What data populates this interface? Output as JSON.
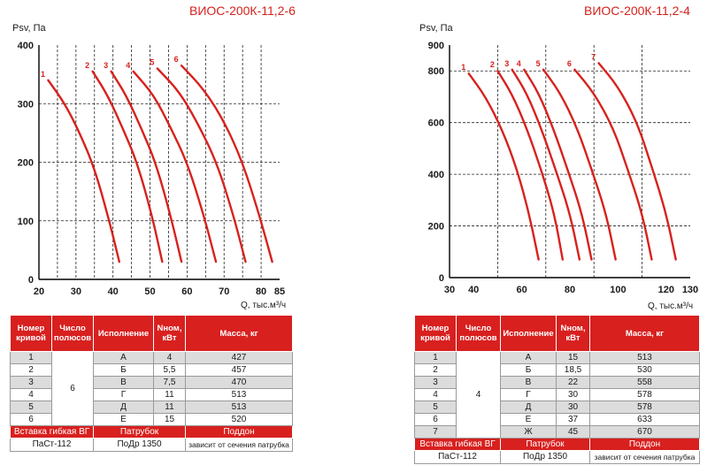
{
  "left": {
    "title": "ВИОС-200К-11,2-6",
    "chart_data": {
      "type": "line",
      "ylabel": "Psv, Па",
      "xlabel": "Q, тыс.м³/ч",
      "xlim": [
        20,
        85
      ],
      "ylim": [
        0,
        400
      ],
      "xticks": [
        20,
        30,
        40,
        50,
        60,
        70,
        80,
        85
      ],
      "yticks": [
        0,
        100,
        200,
        300,
        400
      ],
      "grid": true,
      "series": [
        {
          "name": "1",
          "x": [
            22.5,
            27,
            31,
            35,
            39,
            41.7
          ],
          "y": [
            340,
            300,
            250,
            190,
            100,
            30
          ]
        },
        {
          "name": "2",
          "x": [
            34.5,
            38.5,
            42.5,
            46.5,
            50.5,
            53.3
          ],
          "y": [
            355,
            315,
            260,
            200,
            110,
            30
          ]
        },
        {
          "name": "3",
          "x": [
            39.5,
            43.5,
            47.5,
            51.5,
            55.5,
            58.5
          ],
          "y": [
            355,
            315,
            260,
            200,
            110,
            30
          ]
        },
        {
          "name": "4",
          "x": [
            45.5,
            51,
            55.5,
            60,
            64.5,
            67.8
          ],
          "y": [
            355,
            315,
            260,
            200,
            110,
            30
          ]
        },
        {
          "name": "5",
          "x": [
            52,
            58,
            63,
            68,
            72.5,
            75.8
          ],
          "y": [
            360,
            320,
            265,
            200,
            110,
            30
          ]
        },
        {
          "name": "6",
          "x": [
            58.5,
            64.5,
            70,
            75,
            79.5,
            83
          ],
          "y": [
            365,
            325,
            270,
            200,
            110,
            30
          ]
        }
      ]
    },
    "table": {
      "headers": [
        "Номер кривой",
        "Число полюсов",
        "Исполнение",
        "Nном, кВт",
        "Масса, кг"
      ],
      "poles": "6",
      "rows": [
        {
          "n": "1",
          "isp": "А",
          "nnom": "4",
          "mass": "427"
        },
        {
          "n": "2",
          "isp": "Б",
          "nnom": "5,5",
          "mass": "457"
        },
        {
          "n": "3",
          "isp": "В",
          "nnom": "7,5",
          "mass": "470"
        },
        {
          "n": "4",
          "isp": "Г",
          "nnom": "11",
          "mass": "513"
        },
        {
          "n": "5",
          "isp": "Д",
          "nnom": "11",
          "mass": "513"
        },
        {
          "n": "6",
          "isp": "Е",
          "nnom": "15",
          "mass": "520"
        }
      ],
      "acc_headers": [
        "Вставка гибкая ВГ",
        "Патрубок",
        "Поддон"
      ],
      "acc_values": [
        "ПаСт-112",
        "ПоДр 1350",
        "зависит от сечения патрубка"
      ]
    }
  },
  "right": {
    "title": "ВИОС-200К-11,2-4",
    "chart_data": {
      "type": "line",
      "ylabel": "Psv, Па",
      "xlabel": "Q, тыс.м³/ч",
      "xlim": [
        30,
        130
      ],
      "ylim": [
        0,
        900
      ],
      "xticks": [
        30,
        40,
        60,
        80,
        100,
        120,
        130
      ],
      "yticks": [
        0,
        200,
        400,
        600,
        800,
        900
      ],
      "grid": true,
      "series": [
        {
          "name": "1",
          "x": [
            38,
            45,
            52,
            58,
            63,
            67
          ],
          "y": [
            790,
            700,
            570,
            420,
            250,
            70
          ]
        },
        {
          "name": "2",
          "x": [
            50,
            56,
            62,
            68,
            73.5,
            77
          ],
          "y": [
            800,
            710,
            580,
            420,
            250,
            70
          ]
        },
        {
          "name": "3",
          "x": [
            56,
            62,
            68,
            74,
            80,
            84
          ],
          "y": [
            805,
            715,
            580,
            420,
            250,
            70
          ]
        },
        {
          "name": "4",
          "x": [
            61,
            67,
            73,
            79,
            85,
            89
          ],
          "y": [
            805,
            715,
            580,
            420,
            250,
            70
          ]
        },
        {
          "name": "5",
          "x": [
            69,
            76,
            83,
            89,
            95,
            99
          ],
          "y": [
            805,
            715,
            580,
            420,
            250,
            70
          ]
        },
        {
          "name": "6",
          "x": [
            82,
            90,
            98,
            104,
            110,
            114
          ],
          "y": [
            805,
            715,
            580,
            420,
            250,
            70
          ]
        },
        {
          "name": "7",
          "x": [
            92,
            100,
            108,
            114,
            120,
            124
          ],
          "y": [
            830,
            740,
            600,
            430,
            250,
            70
          ]
        }
      ]
    },
    "table": {
      "headers": [
        "Номер кривой",
        "Число полюсов",
        "Исполнение",
        "Nном, кВт",
        "Масса, кг"
      ],
      "poles": "4",
      "rows": [
        {
          "n": "1",
          "isp": "А",
          "nnom": "15",
          "mass": "513"
        },
        {
          "n": "2",
          "isp": "Б",
          "nnom": "18,5",
          "mass": "530"
        },
        {
          "n": "3",
          "isp": "В",
          "nnom": "22",
          "mass": "558"
        },
        {
          "n": "4",
          "isp": "Г",
          "nnom": "30",
          "mass": "578"
        },
        {
          "n": "5",
          "isp": "Д",
          "nnom": "30",
          "mass": "578"
        },
        {
          "n": "6",
          "isp": "Е",
          "nnom": "37",
          "mass": "633"
        },
        {
          "n": "7",
          "isp": "Ж",
          "nnom": "45",
          "mass": "670"
        }
      ],
      "acc_headers": [
        "Вставка гибкая ВГ",
        "Патрубок",
        "Поддон"
      ],
      "acc_values": [
        "ПаСт-112",
        "ПоДр 1350",
        "зависит от сечения патрубка"
      ]
    }
  },
  "colors": {
    "accent": "#d8201f",
    "curve": "#d6221e",
    "grid": "#222222",
    "row_band": "#dcdcdc"
  }
}
